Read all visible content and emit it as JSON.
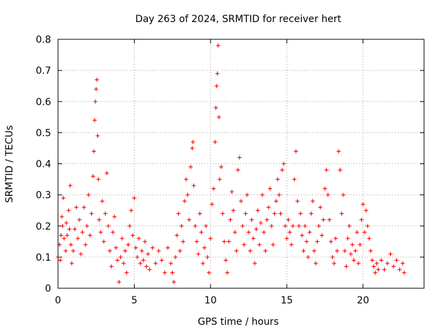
{
  "chart_data": {
    "type": "scatter",
    "title": "Day 263 of 2024, SRMTID for receiver hert",
    "xlabel": "GPS time / hours",
    "ylabel": "SRMTID / TECUs",
    "xlim": [
      0,
      24
    ],
    "ylim": [
      0,
      0.8
    ],
    "x_ticks": [
      0,
      5,
      10,
      15,
      20
    ],
    "x_tick_labels": [
      "0",
      "5",
      "10",
      "15",
      "20"
    ],
    "y_ticks": [
      0,
      0.1,
      0.2,
      0.3,
      0.4,
      0.5,
      0.6,
      0.7,
      0.8
    ],
    "y_tick_labels": [
      "0",
      "0.1",
      "0.2",
      "0.3",
      "0.4",
      "0.5",
      "0.6",
      "0.7",
      "0.8"
    ],
    "grid": true,
    "marker": "plus",
    "point_color": "#ff0000",
    "series": [
      {
        "name": "SRMTID",
        "points": [
          [
            0.0,
            0.1
          ],
          [
            0.1,
            0.14
          ],
          [
            0.15,
            0.09
          ],
          [
            0.2,
            0.17
          ],
          [
            0.25,
            0.23
          ],
          [
            0.3,
            0.2
          ],
          [
            0.35,
            0.29
          ],
          [
            0.4,
            0.16
          ],
          [
            0.5,
            0.12
          ],
          [
            0.55,
            0.21
          ],
          [
            0.6,
            0.17
          ],
          [
            0.7,
            0.25
          ],
          [
            0.75,
            0.19
          ],
          [
            0.8,
            0.33
          ],
          [
            0.85,
            0.14
          ],
          [
            0.9,
            0.08
          ],
          [
            1.0,
            0.12
          ],
          [
            1.1,
            0.19
          ],
          [
            1.2,
            0.26
          ],
          [
            1.3,
            0.16
          ],
          [
            1.4,
            0.22
          ],
          [
            1.5,
            0.11
          ],
          [
            1.6,
            0.18
          ],
          [
            1.7,
            0.26
          ],
          [
            1.8,
            0.14
          ],
          [
            1.9,
            0.2
          ],
          [
            2.0,
            0.3
          ],
          [
            2.1,
            0.17
          ],
          [
            2.2,
            0.24
          ],
          [
            2.3,
            0.36
          ],
          [
            2.35,
            0.44
          ],
          [
            2.4,
            0.54
          ],
          [
            2.45,
            0.6
          ],
          [
            2.5,
            0.64
          ],
          [
            2.55,
            0.67
          ],
          [
            2.6,
            0.49
          ],
          [
            2.65,
            0.35
          ],
          [
            2.7,
            0.22
          ],
          [
            2.8,
            0.18
          ],
          [
            2.9,
            0.28
          ],
          [
            3.0,
            0.15
          ],
          [
            3.1,
            0.24
          ],
          [
            3.2,
            0.37
          ],
          [
            3.3,
            0.2
          ],
          [
            3.4,
            0.12
          ],
          [
            3.5,
            0.07
          ],
          [
            3.6,
            0.18
          ],
          [
            3.7,
            0.23
          ],
          [
            3.8,
            0.13
          ],
          [
            3.9,
            0.09
          ],
          [
            4.0,
            0.02
          ],
          [
            4.1,
            0.1
          ],
          [
            4.2,
            0.16
          ],
          [
            4.3,
            0.08
          ],
          [
            4.4,
            0.12
          ],
          [
            4.5,
            0.05
          ],
          [
            4.6,
            0.14
          ],
          [
            4.7,
            0.2
          ],
          [
            4.8,
            0.25
          ],
          [
            4.9,
            0.17
          ],
          [
            5.0,
            0.29
          ],
          [
            5.1,
            0.13
          ],
          [
            5.2,
            0.1
          ],
          [
            5.3,
            0.16
          ],
          [
            5.4,
            0.08
          ],
          [
            5.5,
            0.12
          ],
          [
            5.6,
            0.09
          ],
          [
            5.7,
            0.15
          ],
          [
            5.8,
            0.07
          ],
          [
            5.9,
            0.11
          ],
          [
            6.0,
            0.06
          ],
          [
            6.2,
            0.13
          ],
          [
            6.4,
            0.08
          ],
          [
            6.6,
            0.12
          ],
          [
            6.8,
            0.09
          ],
          [
            7.0,
            0.05
          ],
          [
            7.2,
            0.13
          ],
          [
            7.4,
            0.08
          ],
          [
            7.5,
            0.05
          ],
          [
            7.6,
            0.02
          ],
          [
            7.7,
            0.1
          ],
          [
            7.8,
            0.17
          ],
          [
            7.9,
            0.24
          ],
          [
            8.0,
            0.12
          ],
          [
            8.1,
            0.2
          ],
          [
            8.2,
            0.15
          ],
          [
            8.3,
            0.28
          ],
          [
            8.4,
            0.35
          ],
          [
            8.5,
            0.3
          ],
          [
            8.6,
            0.22
          ],
          [
            8.7,
            0.39
          ],
          [
            8.8,
            0.45
          ],
          [
            8.85,
            0.47
          ],
          [
            8.9,
            0.33
          ],
          [
            9.0,
            0.2
          ],
          [
            9.1,
            0.15
          ],
          [
            9.2,
            0.11
          ],
          [
            9.3,
            0.24
          ],
          [
            9.4,
            0.18
          ],
          [
            9.5,
            0.08
          ],
          [
            9.6,
            0.13
          ],
          [
            9.7,
            0.2
          ],
          [
            9.8,
            0.1
          ],
          [
            9.9,
            0.05
          ],
          [
            10.0,
            0.16
          ],
          [
            10.1,
            0.27
          ],
          [
            10.2,
            0.32
          ],
          [
            10.3,
            0.47
          ],
          [
            10.35,
            0.58
          ],
          [
            10.4,
            0.65
          ],
          [
            10.45,
            0.69
          ],
          [
            10.5,
            0.78
          ],
          [
            10.55,
            0.55
          ],
          [
            10.6,
            0.35
          ],
          [
            10.7,
            0.39
          ],
          [
            10.8,
            0.24
          ],
          [
            10.9,
            0.15
          ],
          [
            11.0,
            0.09
          ],
          [
            11.1,
            0.05
          ],
          [
            11.2,
            0.15
          ],
          [
            11.3,
            0.22
          ],
          [
            11.4,
            0.31
          ],
          [
            11.5,
            0.25
          ],
          [
            11.6,
            0.18
          ],
          [
            11.7,
            0.12
          ],
          [
            11.8,
            0.38
          ],
          [
            11.9,
            0.42
          ],
          [
            12.0,
            0.28
          ],
          [
            12.1,
            0.2
          ],
          [
            12.2,
            0.14
          ],
          [
            12.3,
            0.24
          ],
          [
            12.4,
            0.3
          ],
          [
            12.5,
            0.18
          ],
          [
            12.6,
            0.12
          ],
          [
            12.7,
            0.22
          ],
          [
            12.8,
            0.16
          ],
          [
            12.9,
            0.08
          ],
          [
            13.0,
            0.19
          ],
          [
            13.1,
            0.25
          ],
          [
            13.2,
            0.14
          ],
          [
            13.3,
            0.21
          ],
          [
            13.4,
            0.3
          ],
          [
            13.5,
            0.18
          ],
          [
            13.6,
            0.12
          ],
          [
            13.7,
            0.22
          ],
          [
            13.8,
            0.26
          ],
          [
            13.9,
            0.32
          ],
          [
            14.0,
            0.2
          ],
          [
            14.1,
            0.14
          ],
          [
            14.2,
            0.24
          ],
          [
            14.3,
            0.28
          ],
          [
            14.4,
            0.35
          ],
          [
            14.5,
            0.3
          ],
          [
            14.6,
            0.24
          ],
          [
            14.7,
            0.38
          ],
          [
            14.8,
            0.4
          ],
          [
            14.9,
            0.2
          ],
          [
            15.0,
            0.16
          ],
          [
            15.1,
            0.22
          ],
          [
            15.2,
            0.18
          ],
          [
            15.3,
            0.14
          ],
          [
            15.4,
            0.2
          ],
          [
            15.5,
            0.35
          ],
          [
            15.6,
            0.44
          ],
          [
            15.7,
            0.28
          ],
          [
            15.8,
            0.2
          ],
          [
            15.9,
            0.24
          ],
          [
            16.0,
            0.17
          ],
          [
            16.1,
            0.12
          ],
          [
            16.2,
            0.2
          ],
          [
            16.3,
            0.15
          ],
          [
            16.4,
            0.1
          ],
          [
            16.5,
            0.18
          ],
          [
            16.6,
            0.24
          ],
          [
            16.7,
            0.28
          ],
          [
            16.8,
            0.12
          ],
          [
            16.9,
            0.08
          ],
          [
            17.0,
            0.15
          ],
          [
            17.1,
            0.2
          ],
          [
            17.2,
            0.26
          ],
          [
            17.3,
            0.17
          ],
          [
            17.4,
            0.22
          ],
          [
            17.5,
            0.32
          ],
          [
            17.6,
            0.38
          ],
          [
            17.7,
            0.3
          ],
          [
            17.8,
            0.22
          ],
          [
            17.9,
            0.15
          ],
          [
            18.0,
            0.1
          ],
          [
            18.1,
            0.08
          ],
          [
            18.2,
            0.16
          ],
          [
            18.3,
            0.12
          ],
          [
            18.4,
            0.44
          ],
          [
            18.5,
            0.38
          ],
          [
            18.6,
            0.24
          ],
          [
            18.7,
            0.3
          ],
          [
            18.8,
            0.12
          ],
          [
            18.9,
            0.07
          ],
          [
            19.0,
            0.16
          ],
          [
            19.1,
            0.2
          ],
          [
            19.2,
            0.11
          ],
          [
            19.3,
            0.14
          ],
          [
            19.4,
            0.09
          ],
          [
            19.5,
            0.12
          ],
          [
            19.6,
            0.18
          ],
          [
            19.7,
            0.08
          ],
          [
            19.8,
            0.14
          ],
          [
            19.9,
            0.22
          ],
          [
            20.0,
            0.27
          ],
          [
            20.1,
            0.18
          ],
          [
            20.2,
            0.25
          ],
          [
            20.3,
            0.2
          ],
          [
            20.4,
            0.16
          ],
          [
            20.5,
            0.12
          ],
          [
            20.6,
            0.09
          ],
          [
            20.7,
            0.07
          ],
          [
            20.8,
            0.05
          ],
          [
            20.9,
            0.08
          ],
          [
            21.0,
            0.06
          ],
          [
            21.2,
            0.09
          ],
          [
            21.4,
            0.06
          ],
          [
            21.6,
            0.08
          ],
          [
            21.8,
            0.11
          ],
          [
            22.0,
            0.07
          ],
          [
            22.2,
            0.09
          ],
          [
            22.4,
            0.06
          ],
          [
            22.6,
            0.08
          ],
          [
            22.7,
            0.05
          ]
        ]
      }
    ]
  }
}
